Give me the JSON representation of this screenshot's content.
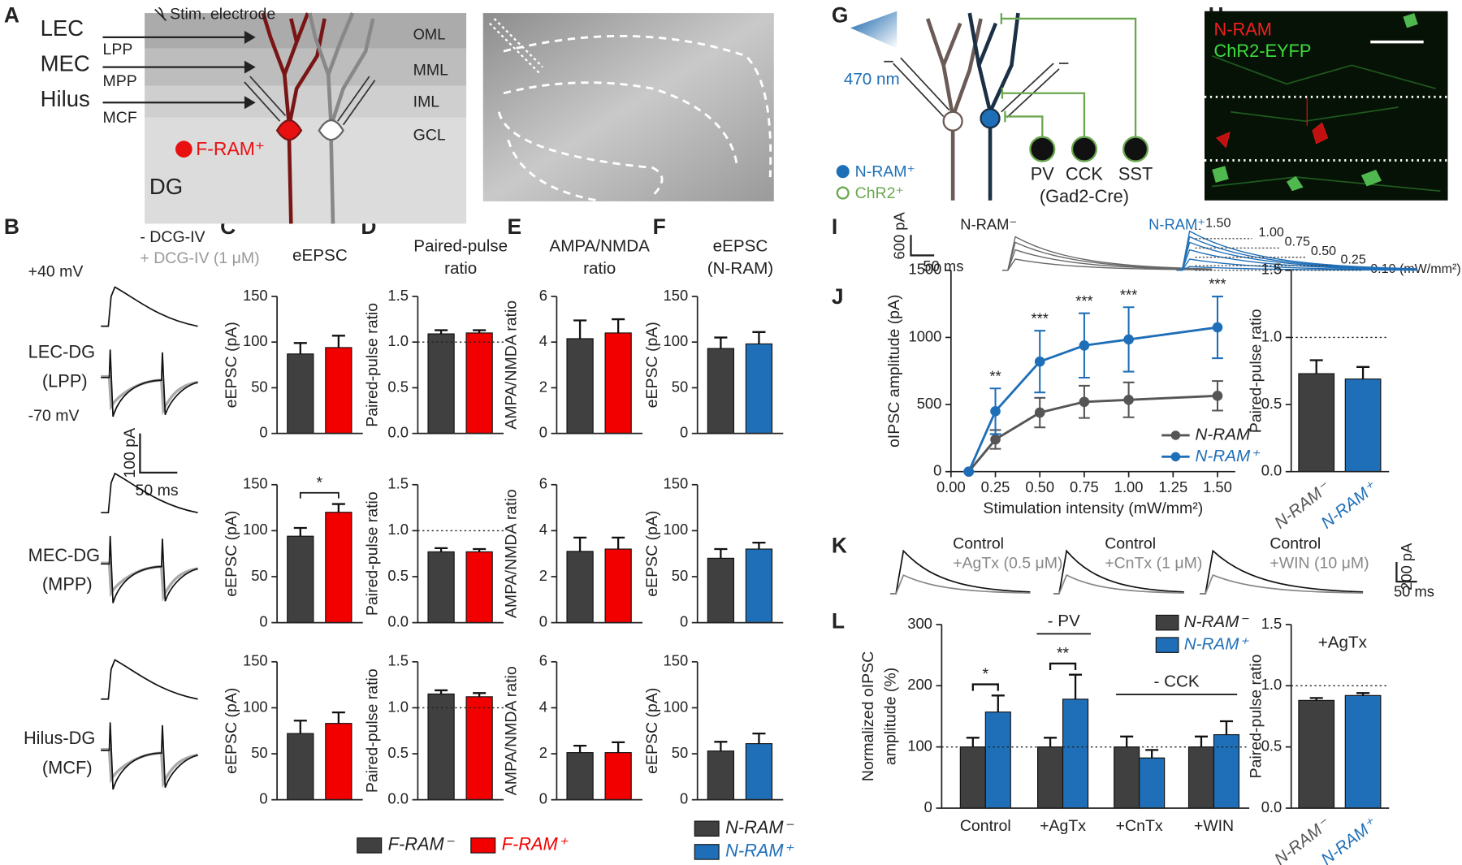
{
  "panel_labels": [
    "A",
    "B",
    "C",
    "D",
    "E",
    "F",
    "G",
    "H",
    "I",
    "J",
    "K",
    "L"
  ],
  "panel_A": {
    "electrode": "Stim. electrode",
    "inputs": [
      "LEC",
      "MEC",
      "Hilus"
    ],
    "pathways": [
      "LPP",
      "MPP",
      "MCF"
    ],
    "layers": [
      "OML",
      "MML",
      "IML",
      "GCL"
    ],
    "cell_label": "F-RAM⁺",
    "region": "DG"
  },
  "panel_B": {
    "conditions": [
      "- DCG-IV",
      "+ DCG-IV (1 μM)"
    ],
    "holding": [
      "+40 mV",
      "-70 mV"
    ],
    "inputs": [
      "LEC-DG",
      "MEC-DG",
      "Hilus-DG"
    ],
    "pathways": [
      "(LPP)",
      "(MPP)",
      "(MCF)"
    ],
    "scale": [
      "100 pA",
      "50 ms"
    ]
  },
  "panel_G": {
    "light": "470 nm",
    "interneurons": [
      "PV",
      "CCK",
      "SST"
    ],
    "driver": "(Gad2-Cre)",
    "legend": [
      "N-RAM⁺",
      "ChR2⁺"
    ]
  },
  "panel_H": {
    "channels": [
      "N-RAM",
      "ChR2-EYFP"
    ]
  },
  "panel_I": {
    "scale": [
      "600 pA",
      "50 ms"
    ],
    "groups": [
      "N-RAM⁻",
      "N-RAM⁺"
    ],
    "intensities": [
      "1.50",
      "1.00",
      "0.75",
      "0.50",
      "0.25",
      "0.10 (mW/mm²)"
    ]
  },
  "panel_K": {
    "conditions": [
      [
        "Control",
        "+AgTx (0.5 μM)"
      ],
      [
        "Control",
        "+CnTx (1 μM)"
      ],
      [
        "Control",
        "+WIN (10 μM)"
      ]
    ],
    "scale": [
      "200 pA",
      "50 ms"
    ]
  },
  "legends": [
    {
      "items": [
        {
          "name": "F-RAM⁻",
          "color": "#404040"
        },
        {
          "name": "F-RAM⁺",
          "color": "#f20000"
        }
      ]
    },
    {
      "items": [
        {
          "name": "N-RAM⁻",
          "color": "#404040"
        },
        {
          "name": "N-RAM⁺",
          "color": "#1f6fb8"
        }
      ]
    }
  ],
  "chart_data": [
    {
      "type": "bar",
      "title": [
        "eEPSC"
      ],
      "ylabel": "eEPSC (pA)",
      "values": [
        87,
        94
      ],
      "errors": [
        12,
        13
      ],
      "colors": [
        "#404040",
        "#f20000"
      ],
      "ylim": [
        0,
        150
      ],
      "yticks": [
        0,
        50,
        100,
        150
      ]
    },
    {
      "type": "bar",
      "ylabel": "eEPSC (pA)",
      "values": [
        94,
        120
      ],
      "errors": [
        9,
        9
      ],
      "colors": [
        "#404040",
        "#f20000"
      ],
      "ylim": [
        0,
        150
      ],
      "yticks": [
        0,
        50,
        100,
        150
      ],
      "significance": "*"
    },
    {
      "type": "bar",
      "ylabel": "eEPSC (pA)",
      "values": [
        72,
        83
      ],
      "errors": [
        14,
        12
      ],
      "colors": [
        "#404040",
        "#f20000"
      ],
      "ylim": [
        0,
        150
      ],
      "yticks": [
        0,
        50,
        100,
        150
      ]
    },
    {
      "type": "bar",
      "title": [
        "Paired-pulse",
        "ratio"
      ],
      "ylabel": "Paired-pulse ratio",
      "values": [
        1.09,
        1.1
      ],
      "errors": [
        0.04,
        0.03
      ],
      "colors": [
        "#404040",
        "#f20000"
      ],
      "ylim": [
        0,
        1.5
      ],
      "yticks": [
        {
          "value": 0,
          "label": "0.0"
        },
        0.5,
        {
          "value": 1,
          "label": "1.0"
        },
        1.5
      ],
      "reference_line": 1
    },
    {
      "type": "bar",
      "ylabel": "Paired-pulse ratio",
      "values": [
        0.77,
        0.77
      ],
      "errors": [
        0.04,
        0.03
      ],
      "colors": [
        "#404040",
        "#f20000"
      ],
      "ylim": [
        0,
        1.5
      ],
      "yticks": [
        {
          "value": 0,
          "label": "0.0"
        },
        0.5,
        {
          "value": 1,
          "label": "1.0"
        },
        1.5
      ],
      "reference_line": 1
    },
    {
      "type": "bar",
      "ylabel": "Paired-pulse ratio",
      "values": [
        1.15,
        1.12
      ],
      "errors": [
        0.04,
        0.04
      ],
      "colors": [
        "#404040",
        "#f20000"
      ],
      "ylim": [
        0,
        1.5
      ],
      "yticks": [
        {
          "value": 0,
          "label": "0.0"
        },
        0.5,
        {
          "value": 1,
          "label": "1.0"
        },
        1.5
      ],
      "reference_line": 1
    },
    {
      "type": "bar",
      "title": [
        "AMPA/NMDA",
        "ratio"
      ],
      "ylabel": "AMPA/NMDA ratio",
      "values": [
        4.15,
        4.4
      ],
      "errors": [
        0.8,
        0.6
      ],
      "colors": [
        "#404040",
        "#f20000"
      ],
      "ylim": [
        0,
        6
      ],
      "yticks": [
        0,
        2,
        4,
        6
      ]
    },
    {
      "type": "bar",
      "ylabel": "AMPA/NMDA ratio",
      "values": [
        3.1,
        3.2
      ],
      "errors": [
        0.6,
        0.5
      ],
      "colors": [
        "#404040",
        "#f20000"
      ],
      "ylim": [
        0,
        6
      ],
      "yticks": [
        0,
        2,
        4,
        6
      ]
    },
    {
      "type": "bar",
      "ylabel": "AMPA/NMDA ratio",
      "values": [
        2.05,
        2.05
      ],
      "errors": [
        0.3,
        0.45
      ],
      "colors": [
        "#404040",
        "#f20000"
      ],
      "ylim": [
        0,
        6
      ],
      "yticks": [
        0,
        2,
        4,
        6
      ]
    },
    {
      "type": "bar",
      "title": [
        "eEPSC",
        "(N-RAM)"
      ],
      "ylabel": "eEPSC (pA)",
      "values": [
        93,
        98
      ],
      "errors": [
        12,
        13
      ],
      "colors": [
        "#404040",
        "#1f6fb8"
      ],
      "ylim": [
        0,
        150
      ],
      "yticks": [
        0,
        50,
        100,
        150
      ]
    },
    {
      "type": "bar",
      "ylabel": "eEPSC (pA)",
      "values": [
        70,
        80
      ],
      "errors": [
        10,
        7
      ],
      "colors": [
        "#404040",
        "#1f6fb8"
      ],
      "ylim": [
        0,
        150
      ],
      "yticks": [
        0,
        50,
        100,
        150
      ]
    },
    {
      "type": "bar",
      "ylabel": "eEPSC (pA)",
      "values": [
        53,
        61
      ],
      "errors": [
        10,
        11
      ],
      "colors": [
        "#404040",
        "#1f6fb8"
      ],
      "ylim": [
        0,
        150
      ],
      "yticks": [
        0,
        50,
        100,
        150
      ]
    },
    {
      "type": "line",
      "xlabel": "Stimulation intensity (mW/mm²)",
      "ylabel": "oIPSC amplitude (pA)",
      "x": [
        0.1,
        0.25,
        0.5,
        0.75,
        1,
        1.5
      ],
      "xlim": [
        0,
        1.6
      ],
      "xticks": [
        {
          "value": 0,
          "label": "0.00"
        },
        0.25,
        {
          "value": 0.5,
          "label": "0.50"
        },
        0.75,
        {
          "value": 1,
          "label": "1.00"
        },
        1.25,
        {
          "value": 1.5,
          "label": "1.50"
        }
      ],
      "ylim": [
        0,
        1500
      ],
      "yticks": [
        0,
        500,
        1000,
        1500
      ],
      "series": [
        {
          "name": "N-RAM⁻",
          "color": "#555555",
          "values": [
            0,
            240,
            440,
            520,
            535,
            565
          ],
          "errors": [
            0,
            70,
            110,
            120,
            130,
            110
          ]
        },
        {
          "name": "N-RAM⁺",
          "color": "#1f6fb8",
          "values": [
            0,
            450,
            820,
            940,
            985,
            1075
          ],
          "errors": [
            0,
            170,
            230,
            240,
            240,
            230
          ]
        }
      ],
      "significance": [
        null,
        "**",
        "***",
        "***",
        "***",
        "***"
      ]
    },
    {
      "type": "bar",
      "ylabel": "Paired-pulse ratio",
      "categories": [
        "N-RAM⁻",
        "N-RAM⁺"
      ],
      "values": [
        0.73,
        0.69
      ],
      "errors": [
        0.1,
        0.09
      ],
      "colors": [
        "#404040",
        "#1f6fb8"
      ],
      "ylim": [
        0,
        1.5
      ],
      "yticks": [
        {
          "value": 0,
          "label": "0.0"
        },
        0.5,
        {
          "value": 1,
          "label": "1.0"
        },
        1.5
      ],
      "reference_line": 1
    },
    {
      "type": "grouped_bar",
      "ylabel": [
        "Normalized oIPSC",
        "amplitude (%)"
      ],
      "categories": [
        "Control",
        "+AgTx",
        "+CnTx",
        "+WIN"
      ],
      "ylim": [
        0,
        300
      ],
      "yticks": [
        0,
        100,
        200,
        300
      ],
      "reference_line": 100,
      "series": [
        {
          "name": "N-RAM⁻",
          "color": "#404040",
          "values": [
            100,
            100,
            100,
            100
          ],
          "errors": [
            15,
            15,
            17,
            17
          ]
        },
        {
          "name": "N-RAM⁺",
          "color": "#1f6fb8",
          "values": [
            157,
            178,
            82,
            120
          ],
          "errors": [
            27,
            40,
            13,
            22
          ]
        }
      ],
      "significance": [
        "*",
        "**",
        null,
        null
      ],
      "annotations": [
        "- PV",
        "- CCK"
      ]
    },
    {
      "type": "bar",
      "title": [
        "+AgTx"
      ],
      "ylabel": "Paired-pulse ratio",
      "categories": [
        "N-RAM⁻",
        "N-RAM⁺"
      ],
      "values": [
        0.88,
        0.92
      ],
      "errors": [
        0.02,
        0.02
      ],
      "colors": [
        "#404040",
        "#1f6fb8"
      ],
      "ylim": [
        0,
        1.5
      ],
      "yticks": [
        {
          "value": 0,
          "label": "0.0"
        },
        0.5,
        {
          "value": 1,
          "label": "1.0"
        },
        1.5
      ],
      "reference_line": 1
    }
  ]
}
